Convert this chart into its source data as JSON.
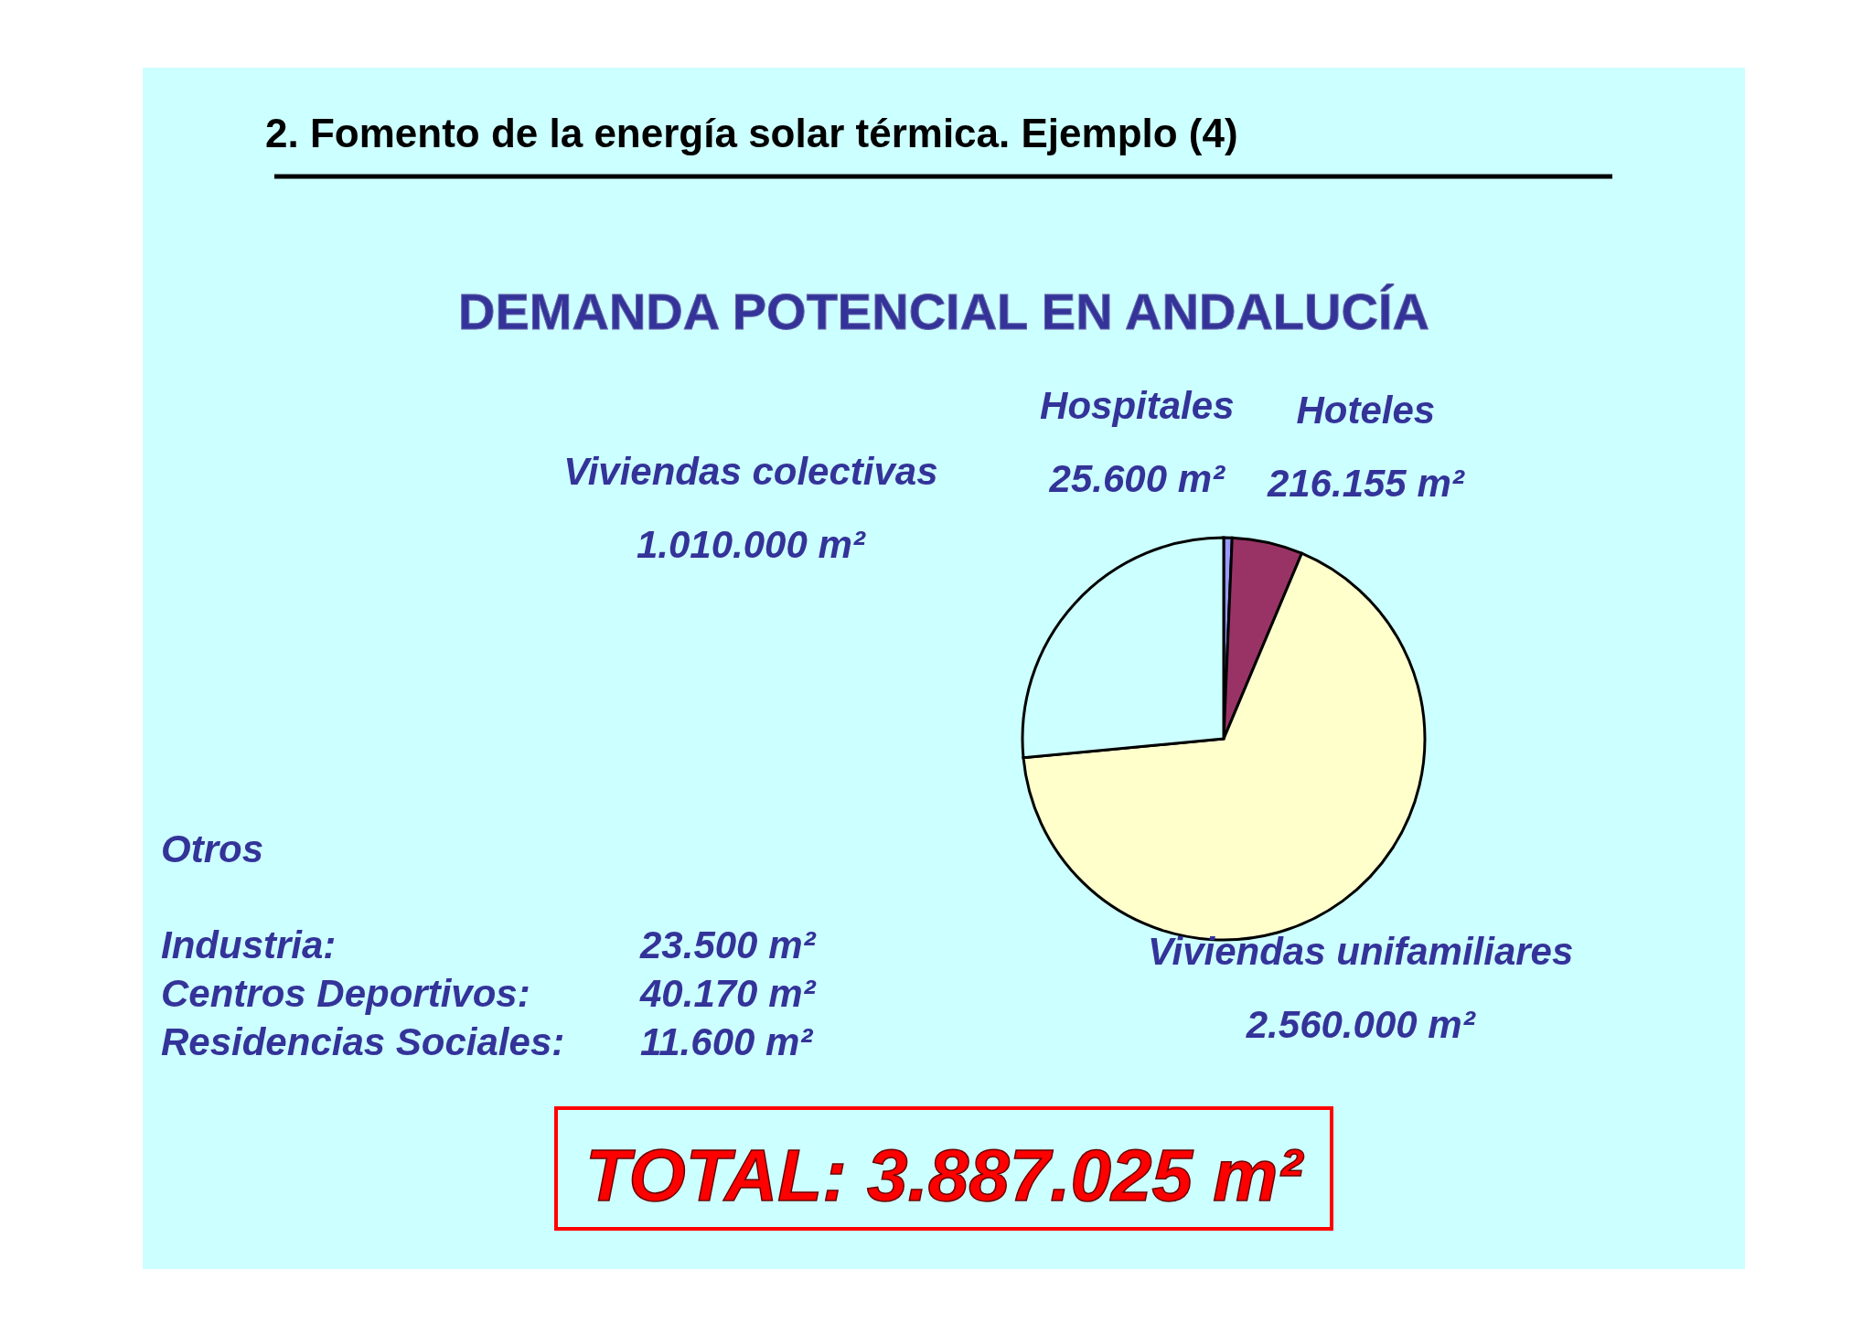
{
  "chart_data": {
    "type": "pie",
    "title": "2.  Fomento de la  energía solar térmica. Ejemplo (4)",
    "subtitle": "DEMANDA POTENCIAL EN ANDALUCÍA",
    "categories": [
      "Hospitales",
      "Hoteles",
      "Viviendas unifamiliares",
      "Viviendas colectivas"
    ],
    "values": [
      25600,
      216155,
      2560000,
      1010000
    ],
    "value_labels": [
      "25.600 m²",
      "216.155 m²",
      "2.560.000 m²",
      "1.010.000 m²"
    ],
    "colors": [
      "#9999ff",
      "#993366",
      "#ffffcc",
      "#ccffff"
    ],
    "annotations": [
      "Otros",
      "Industria:",
      "23.500 m²",
      "Centros Deportivos:",
      "40.170 m²",
      "Residencias Sociales:",
      "11.600 m²",
      "TOTAL: 3.887.025 m²"
    ]
  }
}
